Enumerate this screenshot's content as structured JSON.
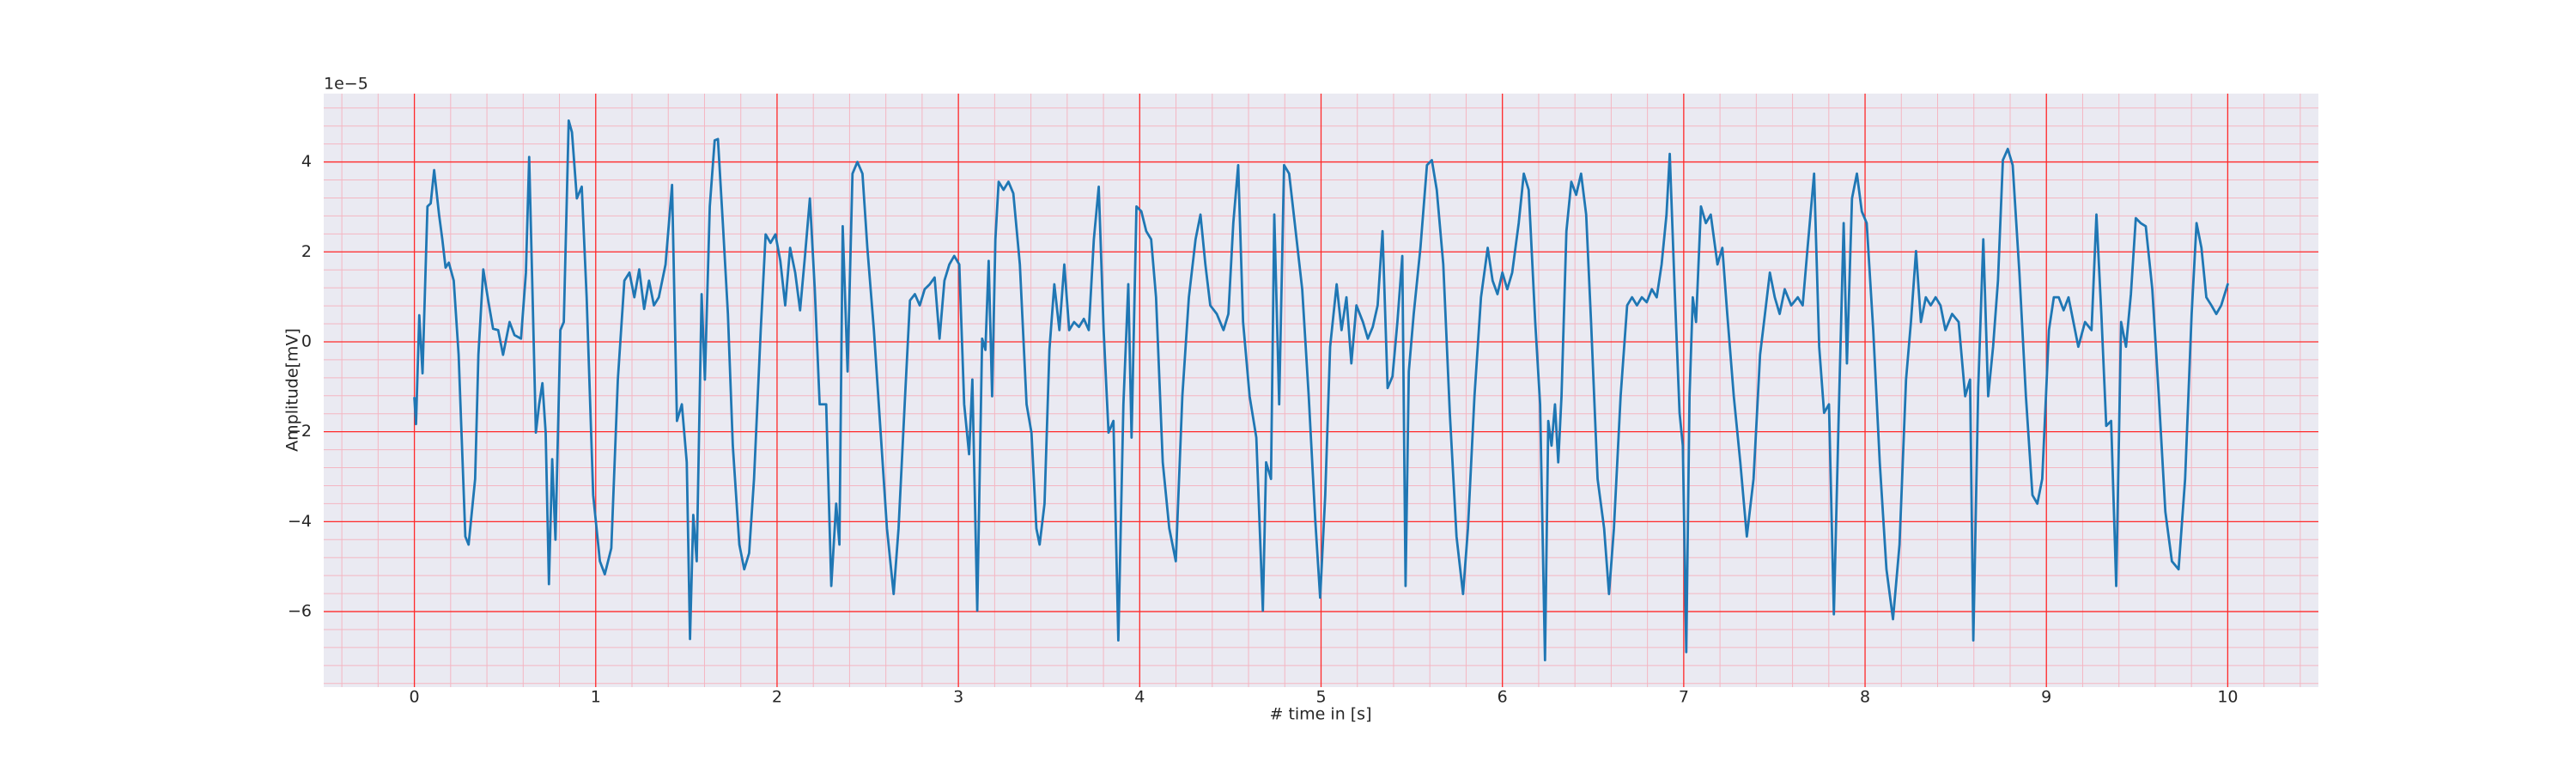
{
  "chart_data": {
    "type": "line",
    "xlabel": "# time in [s]",
    "ylabel": "Amplitude[mV]",
    "offset_label": "1e−5",
    "xlim": [
      -0.5,
      10.5
    ],
    "ylim": [
      -7.68,
      5.52
    ],
    "xticks": [
      0,
      1,
      2,
      3,
      4,
      5,
      6,
      7,
      8,
      9,
      10
    ],
    "yticks": [
      {
        "value": -6,
        "label": "−6"
      },
      {
        "value": -4,
        "label": "−4"
      },
      {
        "value": -2,
        "label": "−2"
      },
      0,
      2,
      4
    ],
    "xminor_ticks": [
      -0.4,
      -0.2,
      0,
      0.2,
      0.4,
      0.6,
      0.8,
      1,
      1.2,
      1.4,
      1.6,
      1.8,
      2,
      2.2,
      2.4,
      2.6,
      2.8,
      3,
      3.2,
      3.4,
      3.6,
      3.8,
      4,
      4.2,
      4.4,
      4.6,
      4.8,
      5,
      5.2,
      5.4,
      5.6,
      5.8,
      6,
      6.2,
      6.4,
      6.6,
      6.8,
      7,
      7.2,
      7.4,
      7.6,
      7.8,
      8,
      8.2,
      8.4,
      8.6,
      8.8,
      9,
      9.2,
      9.4,
      9.6,
      9.8,
      10,
      10.2,
      10.4
    ],
    "yminor_ticks": [
      -7.6,
      -7.2,
      -6.8,
      -6.4,
      -6,
      -5.6,
      -5.2,
      -4.8,
      -4.4,
      -4,
      -3.6,
      -3.2,
      -2.8,
      -2.4,
      -2,
      -1.6,
      -1.2,
      -0.8,
      -0.4,
      0,
      0.4,
      0.8,
      1.2,
      1.6,
      2,
      2.4,
      2.8,
      3.2,
      3.6,
      4,
      4.4,
      4.8,
      5.2
    ],
    "grid": true,
    "minor_grid": true,
    "background": "#eaeaf2",
    "grid_color": "#ff2a2a",
    "minor_grid_color": "#f4b6c2",
    "x": [
      0,
      0.009,
      0.027,
      0.045,
      0.072,
      0.09,
      0.109,
      0.136,
      0.154,
      0.172,
      0.19,
      0.217,
      0.244,
      0.281,
      0.299,
      0.335,
      0.353,
      0.38,
      0.407,
      0.434,
      0.462,
      0.489,
      0.525,
      0.552,
      0.588,
      0.615,
      0.633,
      0.652,
      0.67,
      0.688,
      0.706,
      0.724,
      0.742,
      0.76,
      0.778,
      0.805,
      0.824,
      0.851,
      0.869,
      0.896,
      0.923,
      0.95,
      0.986,
      1.023,
      1.05,
      1.086,
      1.122,
      1.158,
      1.186,
      1.213,
      1.24,
      1.267,
      1.294,
      1.321,
      1.348,
      1.385,
      1.421,
      1.448,
      1.475,
      1.502,
      1.52,
      1.538,
      1.557,
      1.584,
      1.602,
      1.629,
      1.656,
      1.674,
      1.701,
      1.729,
      1.756,
      1.792,
      1.819,
      1.846,
      1.873,
      1.91,
      1.937,
      1.964,
      1.991,
      2.018,
      2.045,
      2.072,
      2.1,
      2.127,
      2.154,
      2.181,
      2.208,
      2.235,
      2.271,
      2.299,
      2.326,
      2.344,
      2.362,
      2.389,
      2.416,
      2.443,
      2.471,
      2.498,
      2.534,
      2.57,
      2.606,
      2.643,
      2.67,
      2.706,
      2.733,
      2.76,
      2.787,
      2.814,
      2.842,
      2.869,
      2.896,
      2.923,
      2.95,
      2.977,
      3.005,
      3.032,
      3.059,
      3.077,
      3.104,
      3.131,
      3.149,
      3.167,
      3.186,
      3.204,
      3.222,
      3.249,
      3.276,
      3.303,
      3.339,
      3.376,
      3.403,
      3.43,
      3.448,
      3.475,
      3.502,
      3.529,
      3.557,
      3.584,
      3.611,
      3.638,
      3.665,
      3.692,
      3.719,
      3.747,
      3.774,
      3.801,
      3.828,
      3.855,
      3.882,
      3.91,
      3.937,
      3.955,
      3.982,
      4.009,
      4.036,
      4.063,
      4.09,
      4.127,
      4.163,
      4.199,
      4.235,
      4.271,
      4.308,
      4.335,
      4.362,
      4.389,
      4.425,
      4.462,
      4.489,
      4.516,
      4.543,
      4.57,
      4.606,
      4.643,
      4.679,
      4.697,
      4.724,
      4.742,
      4.769,
      4.796,
      4.824,
      4.86,
      4.896,
      4.932,
      4.968,
      4.995,
      5.023,
      5.05,
      5.086,
      5.113,
      5.14,
      5.167,
      5.195,
      5.231,
      5.258,
      5.285,
      5.312,
      5.339,
      5.367,
      5.394,
      5.421,
      5.448,
      5.466,
      5.484,
      5.511,
      5.548,
      5.584,
      5.611,
      5.638,
      5.674,
      5.71,
      5.747,
      5.783,
      5.81,
      5.846,
      5.882,
      5.919,
      5.946,
      5.973,
      6.0,
      6.027,
      6.054,
      6.09,
      6.118,
      6.145,
      6.181,
      6.208,
      6.235,
      6.253,
      6.271,
      6.29,
      6.308,
      6.326,
      6.353,
      6.38,
      6.407,
      6.434,
      6.462,
      6.489,
      6.525,
      6.561,
      6.588,
      6.615,
      6.652,
      6.688,
      6.715,
      6.742,
      6.769,
      6.796,
      6.824,
      6.851,
      6.878,
      6.905,
      6.923,
      6.95,
      6.977,
      6.995,
      7.014,
      7.032,
      7.05,
      7.068,
      7.095,
      7.122,
      7.149,
      7.186,
      7.213,
      7.24,
      7.276,
      7.312,
      7.348,
      7.385,
      7.421,
      7.448,
      7.475,
      7.502,
      7.529,
      7.557,
      7.593,
      7.629,
      7.656,
      7.683,
      7.719,
      7.747,
      7.774,
      7.801,
      7.828,
      7.855,
      7.882,
      7.9,
      7.928,
      7.955,
      7.982,
      8.009,
      8.045,
      8.081,
      8.118,
      8.154,
      8.19,
      8.226,
      8.253,
      8.281,
      8.308,
      8.335,
      8.362,
      8.389,
      8.416,
      8.443,
      8.48,
      8.516,
      8.552,
      8.579,
      8.597,
      8.624,
      8.652,
      8.679,
      8.706,
      8.733,
      8.76,
      8.787,
      8.814,
      8.851,
      8.887,
      8.923,
      8.95,
      8.977,
      9.014,
      9.041,
      9.068,
      9.095,
      9.122,
      9.149,
      9.176,
      9.213,
      9.249,
      9.276,
      9.303,
      9.33,
      9.357,
      9.385,
      9.412,
      9.439,
      9.466,
      9.493,
      9.52,
      9.548,
      9.584,
      9.62,
      9.656,
      9.692,
      9.729,
      9.765,
      9.801,
      9.828,
      9.855,
      9.882,
      9.91,
      9.937,
      9.964,
      10.0
    ],
    "series": [
      {
        "color": "#1f77b4",
        "values": [
          -1.25,
          -1.83,
          0.59,
          -0.7,
          3.01,
          3.08,
          3.82,
          2.83,
          2.28,
          1.65,
          1.76,
          1.36,
          -0.29,
          -4.33,
          -4.51,
          -3.05,
          -0.29,
          1.61,
          0.92,
          0.29,
          0.26,
          -0.29,
          0.44,
          0.15,
          0.07,
          1.54,
          4.11,
          0.99,
          -2.02,
          -1.39,
          -0.92,
          -2.02,
          -5.39,
          -2.61,
          -4.4,
          0.26,
          0.44,
          4.92,
          4.66,
          3.19,
          3.45,
          0.99,
          -3.41,
          -4.88,
          -5.17,
          -4.59,
          -0.84,
          1.36,
          1.54,
          0.99,
          1.61,
          0.73,
          1.36,
          0.81,
          0.99,
          1.72,
          3.49,
          -1.76,
          -1.39,
          -2.68,
          -6.61,
          -3.85,
          -4.88,
          1.06,
          -0.84,
          3.01,
          4.48,
          4.51,
          2.64,
          0.62,
          -2.31,
          -4.51,
          -5.06,
          -4.7,
          -3.05,
          0.26,
          2.39,
          2.2,
          2.39,
          1.8,
          0.81,
          2.09,
          1.54,
          0.7,
          1.91,
          3.19,
          1.17,
          -1.39,
          -1.39,
          -5.43,
          -3.6,
          -4.51,
          2.57,
          -0.66,
          3.74,
          4.0,
          3.74,
          2.09,
          0.26,
          -1.94,
          -4.15,
          -5.61,
          -4.15,
          -1.21,
          0.92,
          1.06,
          0.81,
          1.17,
          1.28,
          1.43,
          0.07,
          1.36,
          1.72,
          1.91,
          1.72,
          -1.39,
          -2.5,
          -0.84,
          -5.98,
          0.07,
          -0.18,
          1.8,
          -1.21,
          2.28,
          3.56,
          3.38,
          3.56,
          3.3,
          1.72,
          -1.39,
          -2.02,
          -4.15,
          -4.51,
          -3.6,
          -0.18,
          1.28,
          0.26,
          1.72,
          0.26,
          0.44,
          0.33,
          0.51,
          0.26,
          2.28,
          3.45,
          0.26,
          -2.02,
          -1.76,
          -6.64,
          -1.39,
          1.28,
          -2.13,
          3.01,
          2.9,
          2.46,
          2.28,
          0.99,
          -2.68,
          -4.15,
          -4.88,
          -1.21,
          0.99,
          2.28,
          2.83,
          1.72,
          0.81,
          0.62,
          0.26,
          0.62,
          2.64,
          3.93,
          0.44,
          -1.21,
          -2.13,
          -5.98,
          -2.68,
          -3.05,
          2.83,
          -1.39,
          3.93,
          3.74,
          2.46,
          1.17,
          -1.21,
          -3.96,
          -5.69,
          -3.41,
          -0.11,
          1.28,
          0.26,
          0.99,
          -0.48,
          0.81,
          0.44,
          0.07,
          0.33,
          0.81,
          2.46,
          -1.03,
          -0.77,
          0.44,
          1.91,
          -5.43,
          -0.66,
          0.62,
          2.09,
          3.93,
          4.04,
          3.38,
          1.72,
          -1.58,
          -4.33,
          -5.61,
          -4.15,
          -1.21,
          0.99,
          2.09,
          1.36,
          1.06,
          1.54,
          1.17,
          1.54,
          2.64,
          3.74,
          3.38,
          0.44,
          -1.39,
          -7.08,
          -1.76,
          -2.31,
          -1.39,
          -2.68,
          -1.21,
          2.46,
          3.56,
          3.27,
          3.74,
          2.83,
          0.44,
          -3.05,
          -4.15,
          -5.61,
          -4.15,
          -1.21,
          0.81,
          0.99,
          0.81,
          0.99,
          0.88,
          1.17,
          0.99,
          1.72,
          2.83,
          4.18,
          1.17,
          -1.58,
          -2.31,
          -6.9,
          -1.21,
          0.99,
          0.44,
          3.01,
          2.64,
          2.83,
          1.72,
          2.09,
          0.62,
          -1.21,
          -2.68,
          -4.33,
          -3.05,
          -0.29,
          0.62,
          1.54,
          0.99,
          0.62,
          1.17,
          0.81,
          0.99,
          0.81,
          2.09,
          3.74,
          -0.11,
          -1.58,
          -1.39,
          -6.06,
          -1.58,
          2.64,
          -0.48,
          3.19,
          3.74,
          2.9,
          2.64,
          0.26,
          -2.68,
          -5.06,
          -6.17,
          -4.51,
          -0.84,
          0.44,
          2.02,
          0.44,
          0.99,
          0.81,
          0.99,
          0.81,
          0.26,
          0.62,
          0.44,
          -1.21,
          -0.84,
          -6.64,
          -1.03,
          2.28,
          -1.21,
          -0.11,
          1.36,
          4.04,
          4.29,
          3.93,
          1.54,
          -1.21,
          -3.41,
          -3.6,
          -3.05,
          0.26,
          0.99,
          0.99,
          0.7,
          0.99,
          0.44,
          -0.11,
          0.44,
          0.26,
          2.83,
          0.62,
          -1.87,
          -1.76,
          -5.43,
          0.44,
          -0.11,
          1.06,
          2.75,
          2.64,
          2.57,
          1.17,
          -1.21,
          -3.78,
          -4.88,
          -5.06,
          -3.05,
          0.62,
          2.64,
          2.09,
          0.99,
          0.81,
          0.62,
          0.81,
          1.28
        ]
      }
    ]
  }
}
